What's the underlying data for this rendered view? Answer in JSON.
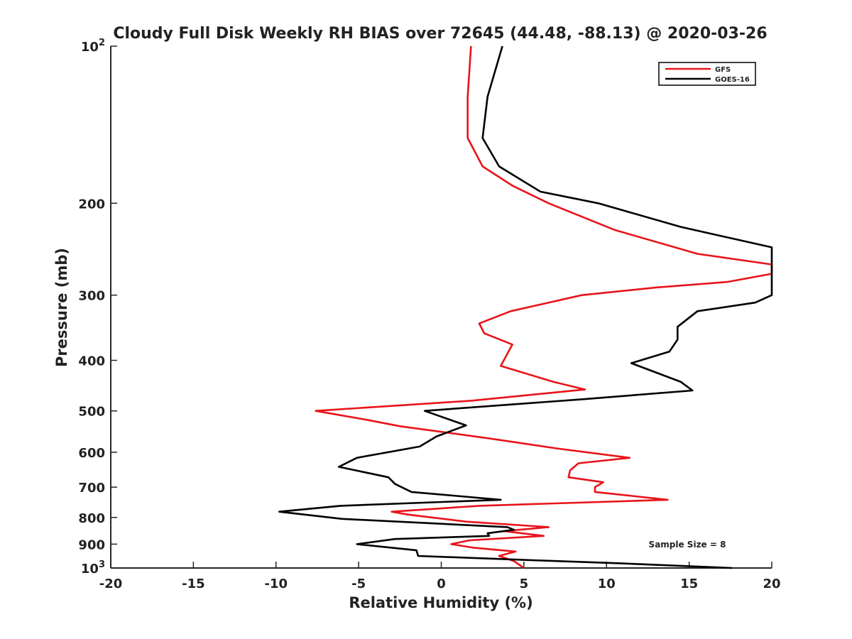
{
  "chart_data": {
    "type": "line",
    "title": "Cloudy Full Disk Weekly RH BIAS over 72645 (44.48, -88.13) @ 2020-03-26",
    "xlabel": "Relative Humidity (%)",
    "ylabel": "Pressure (mb)",
    "xlim": [
      -20,
      20
    ],
    "ylim": [
      100,
      1000
    ],
    "y_scale": "log",
    "y_reversed": true,
    "grid": false,
    "legend_position": "top-right",
    "x_ticks": [
      {
        "value": -20,
        "label": "-20"
      },
      {
        "value": -15,
        "label": "-15"
      },
      {
        "value": -10,
        "label": "-10"
      },
      {
        "value": -5,
        "label": "-5"
      },
      {
        "value": 0,
        "label": "0"
      },
      {
        "value": 5,
        "label": "5"
      },
      {
        "value": 10,
        "label": "10"
      },
      {
        "value": 15,
        "label": "15"
      },
      {
        "value": 20,
        "label": "20"
      }
    ],
    "y_ticks": [
      {
        "value": 100,
        "base": "10",
        "exp": "2"
      },
      {
        "value": 200,
        "base": "200",
        "exp": ""
      },
      {
        "value": 300,
        "base": "300",
        "exp": ""
      },
      {
        "value": 400,
        "base": "400",
        "exp": ""
      },
      {
        "value": 500,
        "base": "500",
        "exp": ""
      },
      {
        "value": 600,
        "base": "600",
        "exp": ""
      },
      {
        "value": 700,
        "base": "700",
        "exp": ""
      },
      {
        "value": 800,
        "base": "800",
        "exp": ""
      },
      {
        "value": 900,
        "base": "900",
        "exp": ""
      },
      {
        "value": 1000,
        "base": "10",
        "exp": "3"
      }
    ],
    "annotation": "Sample Size = 8",
    "series": [
      {
        "name": "GFS",
        "color": "#e8141a",
        "points": [
          [
            1.8,
            100
          ],
          [
            1.6,
            125
          ],
          [
            1.6,
            150
          ],
          [
            2.5,
            170
          ],
          [
            4.3,
            185
          ],
          [
            6.5,
            200
          ],
          [
            10.5,
            225
          ],
          [
            15.5,
            250
          ],
          [
            20.0,
            262
          ],
          [
            20.0,
            273
          ],
          [
            17.3,
            283
          ],
          [
            13.0,
            290
          ],
          [
            8.5,
            300
          ],
          [
            4.2,
            322
          ],
          [
            2.3,
            340
          ],
          [
            2.6,
            355
          ],
          [
            4.3,
            373
          ],
          [
            3.6,
            410
          ],
          [
            6.8,
            440
          ],
          [
            8.7,
            455
          ],
          [
            1.8,
            478
          ],
          [
            -7.6,
            500
          ],
          [
            -4.5,
            520
          ],
          [
            -2.5,
            535
          ],
          [
            3.0,
            565
          ],
          [
            7.0,
            590
          ],
          [
            11.4,
            615
          ],
          [
            8.3,
            630
          ],
          [
            7.8,
            650
          ],
          [
            7.7,
            670
          ],
          [
            9.8,
            685
          ],
          [
            9.3,
            700
          ],
          [
            9.3,
            715
          ],
          [
            13.7,
            740
          ],
          [
            2.3,
            760
          ],
          [
            -3.0,
            780
          ],
          [
            -2.0,
            790
          ],
          [
            1.5,
            815
          ],
          [
            6.5,
            835
          ],
          [
            3.8,
            850
          ],
          [
            6.2,
            868
          ],
          [
            1.7,
            885
          ],
          [
            0.6,
            900
          ],
          [
            2.0,
            915
          ],
          [
            4.5,
            930
          ],
          [
            3.5,
            948
          ],
          [
            4.4,
            970
          ],
          [
            5.0,
            1000
          ]
        ]
      },
      {
        "name": "GOES-16",
        "color": "#000000",
        "points": [
          [
            3.7,
            100
          ],
          [
            2.8,
            125
          ],
          [
            2.5,
            150
          ],
          [
            3.5,
            170
          ],
          [
            6.0,
            190
          ],
          [
            9.5,
            200
          ],
          [
            14.5,
            222
          ],
          [
            20.0,
            243
          ],
          [
            20.0,
            300
          ],
          [
            19.0,
            310
          ],
          [
            15.5,
            322
          ],
          [
            14.3,
            345
          ],
          [
            14.3,
            365
          ],
          [
            13.8,
            385
          ],
          [
            11.5,
            405
          ],
          [
            14.5,
            440
          ],
          [
            15.2,
            457
          ],
          [
            8.5,
            475
          ],
          [
            -1.0,
            500
          ],
          [
            1.5,
            533
          ],
          [
            -0.3,
            560
          ],
          [
            -1.3,
            585
          ],
          [
            -5.1,
            615
          ],
          [
            -6.2,
            640
          ],
          [
            -3.2,
            670
          ],
          [
            -2.8,
            690
          ],
          [
            -1.8,
            715
          ],
          [
            3.6,
            740
          ],
          [
            -6.1,
            760
          ],
          [
            -9.8,
            780
          ],
          [
            -6.0,
            805
          ],
          [
            4.0,
            835
          ],
          [
            4.4,
            845
          ],
          [
            2.8,
            858
          ],
          [
            2.9,
            868
          ],
          [
            -2.8,
            880
          ],
          [
            -5.1,
            900
          ],
          [
            -1.5,
            925
          ],
          [
            -1.4,
            948
          ],
          [
            5.0,
            965
          ],
          [
            11.0,
            980
          ],
          [
            17.6,
            1000
          ]
        ]
      }
    ]
  }
}
